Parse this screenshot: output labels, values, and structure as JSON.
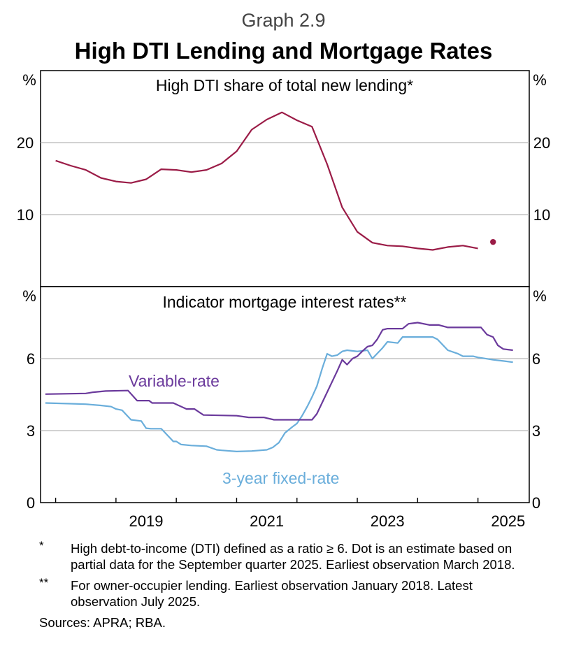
{
  "header": {
    "graph_number": "Graph 2.9",
    "title": "High DTI Lending and Mortgage Rates"
  },
  "colors": {
    "dti": "#9b1c47",
    "variable": "#6b3a9c",
    "fixed": "#6aaedb",
    "grid": "#b8b8b8"
  },
  "chart_data": [
    {
      "type": "line",
      "title": "High DTI share of total new lending*",
      "ylabel_left": "%",
      "ylabel_right": "%",
      "ylim": [
        0,
        30
      ],
      "yticks": [
        10,
        20
      ],
      "xlim": [
        2017.75,
        2025.85
      ],
      "series": [
        {
          "name": "High DTI share",
          "x": [
            2018.0,
            2018.25,
            2018.5,
            2018.75,
            2019.0,
            2019.25,
            2019.5,
            2019.75,
            2020.0,
            2020.25,
            2020.5,
            2020.75,
            2021.0,
            2021.25,
            2021.5,
            2021.75,
            2022.0,
            2022.25,
            2022.5,
            2022.75,
            2023.0,
            2023.25,
            2023.5,
            2023.75,
            2024.0,
            2024.25,
            2024.5,
            2024.75,
            2025.0
          ],
          "values": [
            17.5,
            16.8,
            16.2,
            15.1,
            14.6,
            14.4,
            14.9,
            16.3,
            16.2,
            15.9,
            16.2,
            17.1,
            18.8,
            21.8,
            23.2,
            24.2,
            23.1,
            22.2,
            17.0,
            11.0,
            7.6,
            6.1,
            5.7,
            5.6,
            5.3,
            5.1,
            5.5,
            5.7,
            5.3
          ]
        },
        {
          "name": "Estimate (September quarter 2025)",
          "marker": "dot",
          "x": [
            2025.25
          ],
          "values": [
            6.2
          ]
        }
      ]
    },
    {
      "type": "line",
      "title": "Indicator mortgage interest rates**",
      "ylabel_left": "%",
      "ylabel_right": "%",
      "ylim": [
        0,
        9
      ],
      "yticks": [
        0,
        3,
        6
      ],
      "xlim": [
        2017.75,
        2025.85
      ],
      "xticks": [
        "2019",
        "2021",
        "2023",
        "2025"
      ],
      "series": [
        {
          "name": "Variable-rate",
          "x": [
            2017.83,
            2018.5,
            2018.62,
            2018.83,
            2019.2,
            2019.35,
            2019.55,
            2019.6,
            2019.95,
            2020.17,
            2020.3,
            2020.45,
            2021.0,
            2021.2,
            2021.45,
            2021.62,
            2022.25,
            2022.33,
            2022.5,
            2022.67,
            2022.75,
            2022.83,
            2022.92,
            2023.0,
            2023.08,
            2023.17,
            2023.25,
            2023.33,
            2023.42,
            2023.5,
            2023.6,
            2023.75,
            2023.85,
            2024.0,
            2024.2,
            2024.35,
            2024.5,
            2024.7,
            2024.95,
            2025.05,
            2025.15,
            2025.25,
            2025.33,
            2025.42,
            2025.58
          ],
          "values": [
            4.52,
            4.55,
            4.6,
            4.65,
            4.67,
            4.25,
            4.25,
            4.15,
            4.15,
            3.9,
            3.9,
            3.65,
            3.62,
            3.55,
            3.55,
            3.45,
            3.45,
            3.7,
            4.6,
            5.5,
            5.95,
            5.75,
            6.0,
            6.1,
            6.3,
            6.5,
            6.55,
            6.8,
            7.2,
            7.25,
            7.25,
            7.25,
            7.45,
            7.5,
            7.4,
            7.4,
            7.3,
            7.3,
            7.3,
            7.3,
            7.0,
            6.9,
            6.55,
            6.4,
            6.35
          ]
        },
        {
          "name": "3-year fixed-rate",
          "x": [
            2017.83,
            2018.25,
            2018.5,
            2018.75,
            2018.92,
            2019.0,
            2019.1,
            2019.25,
            2019.42,
            2019.5,
            2019.58,
            2019.75,
            2019.95,
            2020.0,
            2020.08,
            2020.25,
            2020.5,
            2020.67,
            2020.75,
            2020.9,
            2021.0,
            2021.25,
            2021.5,
            2021.6,
            2021.7,
            2021.8,
            2021.92,
            2022.0,
            2022.08,
            2022.17,
            2022.25,
            2022.33,
            2022.42,
            2022.5,
            2022.58,
            2022.67,
            2022.75,
            2022.83,
            2023.0,
            2023.17,
            2023.25,
            2023.42,
            2023.5,
            2023.67,
            2023.75,
            2024.0,
            2024.25,
            2024.33,
            2024.5,
            2024.67,
            2024.75,
            2024.92,
            2025.0,
            2025.08,
            2025.25,
            2025.42,
            2025.58
          ],
          "values": [
            4.15,
            4.12,
            4.1,
            4.05,
            4.0,
            3.9,
            3.85,
            3.45,
            3.4,
            3.1,
            3.08,
            3.08,
            2.55,
            2.55,
            2.42,
            2.38,
            2.35,
            2.2,
            2.18,
            2.15,
            2.13,
            2.15,
            2.2,
            2.3,
            2.5,
            2.9,
            3.15,
            3.3,
            3.6,
            4.0,
            4.4,
            4.85,
            5.6,
            6.2,
            6.1,
            6.15,
            6.3,
            6.35,
            6.3,
            6.35,
            6.0,
            6.45,
            6.7,
            6.65,
            6.9,
            6.9,
            6.9,
            6.8,
            6.35,
            6.2,
            6.1,
            6.1,
            6.05,
            6.02,
            5.95,
            5.9,
            5.85
          ]
        }
      ],
      "annotations": [
        {
          "text": "Variable-rate",
          "series": "Variable-rate"
        },
        {
          "text": "3-year fixed-rate",
          "series": "3-year fixed-rate"
        }
      ]
    }
  ],
  "footnotes": [
    {
      "mark": "*",
      "text": "High debt-to-income (DTI) defined as a ratio ≥ 6. Dot is an estimate based on partial data for the September quarter 2025. Earliest observation March 2018."
    },
    {
      "mark": "**",
      "text": "For owner-occupier lending. Earliest observation January 2018. Latest observation July 2025."
    }
  ],
  "sources": "Sources: APRA; RBA."
}
